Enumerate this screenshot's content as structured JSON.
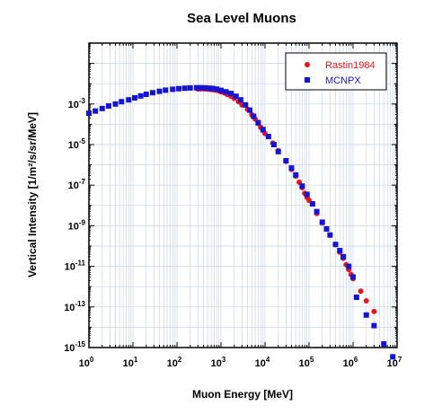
{
  "chart_data": {
    "type": "scatter",
    "title": "Sea Level Muons",
    "xlabel": "Muon Energy [MeV]",
    "ylabel": "Vertical Intensity [1/m²/s/sr/MeV]",
    "xscale": "log",
    "yscale": "log",
    "xlim": [
      1,
      10000000
    ],
    "ylim": [
      1e-15,
      1
    ],
    "grid": true,
    "legend_position": "top-right",
    "x_tick_labels": [
      "10^0",
      "10^1",
      "10^2",
      "10^3",
      "10^4",
      "10^5",
      "10^6",
      "10^7"
    ],
    "y_tick_labels": [
      "10^-15",
      "10^-13",
      "10^-11",
      "10^-9",
      "10^-7",
      "10^-5",
      "10^-3"
    ],
    "series": [
      {
        "name": "Rastin1984",
        "color": "#e8141e",
        "marker": "circle",
        "points": [
          [
            300,
            0.0055
          ],
          [
            350,
            0.0056
          ],
          [
            400,
            0.0056
          ],
          [
            450,
            0.0055
          ],
          [
            500,
            0.0054
          ],
          [
            550,
            0.0053
          ],
          [
            600,
            0.0052
          ],
          [
            650,
            0.0051
          ],
          [
            700,
            0.005
          ],
          [
            800,
            0.0047
          ],
          [
            900,
            0.0044
          ],
          [
            1000,
            0.004
          ],
          [
            1200,
            0.0035
          ],
          [
            1400,
            0.0029
          ],
          [
            1700,
            0.0024
          ],
          [
            2000,
            0.0019
          ],
          [
            2500,
            0.0013
          ],
          [
            3000,
            0.0009
          ],
          [
            4000,
            0.00055
          ],
          [
            5000,
            0.0003
          ],
          [
            6000,
            0.00018
          ],
          [
            7000,
            0.00011
          ],
          [
            8000,
            7e-05
          ],
          [
            9000,
            5e-05
          ],
          [
            10000,
            3.5e-05
          ],
          [
            15000,
            1.2e-05
          ],
          [
            20000,
            5e-06
          ],
          [
            30000,
            1.5e-06
          ],
          [
            40000,
            6e-07
          ],
          [
            50000,
            2.8e-07
          ],
          [
            60000,
            1.4e-07
          ],
          [
            70000,
            7.5e-08
          ],
          [
            80000,
            4e-08
          ],
          [
            90000,
            2.5e-08
          ],
          [
            100000,
            1.8e-08
          ],
          [
            150000,
            4e-09
          ],
          [
            200000,
            1.4e-09
          ],
          [
            300000,
            3.5e-10
          ],
          [
            400000,
            1.2e-10
          ],
          [
            500000,
            5e-11
          ],
          [
            600000,
            2.5e-11
          ],
          [
            700000,
            1.2e-11
          ],
          [
            800000,
            7e-12
          ],
          [
            900000,
            4e-12
          ],
          [
            1000000,
            2.5e-12
          ],
          [
            1500000,
            6e-13
          ],
          [
            2000000,
            2e-13
          ],
          [
            3000000,
            6e-14
          ]
        ]
      },
      {
        "name": "MCNPX",
        "color": "#1414d2",
        "marker": "square",
        "points": [
          [
            1,
            0.00035
          ],
          [
            1.4,
            0.00045
          ],
          [
            2,
            0.0006
          ],
          [
            2.8,
            0.0008
          ],
          [
            4,
            0.001
          ],
          [
            5.5,
            0.0013
          ],
          [
            8,
            0.0016
          ],
          [
            11,
            0.002
          ],
          [
            15,
            0.0025
          ],
          [
            20,
            0.003
          ],
          [
            28,
            0.0036
          ],
          [
            40,
            0.0042
          ],
          [
            55,
            0.0048
          ],
          [
            80,
            0.0053
          ],
          [
            110,
            0.0057
          ],
          [
            150,
            0.006
          ],
          [
            200,
            0.0062
          ],
          [
            280,
            0.0063
          ],
          [
            350,
            0.0063
          ],
          [
            450,
            0.0062
          ],
          [
            550,
            0.006
          ],
          [
            650,
            0.0058
          ],
          [
            800,
            0.0054
          ],
          [
            1000,
            0.0047
          ],
          [
            1300,
            0.004
          ],
          [
            1700,
            0.0033
          ],
          [
            2200,
            0.0024
          ],
          [
            2800,
            0.0016
          ],
          [
            3600,
            0.0009
          ],
          [
            4500,
            0.0005
          ],
          [
            5500,
            0.00025
          ],
          [
            7000,
            0.00012
          ],
          [
            9000,
            5.5e-05
          ],
          [
            12000,
            2.5e-05
          ],
          [
            16000,
            1e-05
          ],
          [
            20000,
            4.5e-06
          ],
          [
            30000,
            1.6e-06
          ],
          [
            40000,
            7e-07
          ],
          [
            50000,
            3.2e-07
          ],
          [
            70000,
            9e-08
          ],
          [
            90000,
            3.5e-08
          ],
          [
            120000,
            1.2e-08
          ],
          [
            150000,
            5e-09
          ],
          [
            200000,
            1.5e-09
          ],
          [
            250000,
            7e-10
          ],
          [
            300000,
            3.5e-10
          ],
          [
            400000,
            1.2e-10
          ],
          [
            500000,
            6e-11
          ],
          [
            600000,
            3e-11
          ],
          [
            800000,
            1e-11
          ],
          [
            1000000,
            3e-12
          ],
          [
            1200000,
            3e-13
          ],
          [
            2000000,
            4e-14
          ],
          [
            3000000,
            1.2e-14
          ],
          [
            5000000,
            1.5e-15
          ],
          [
            8000000,
            3.5e-16
          ]
        ]
      }
    ]
  }
}
